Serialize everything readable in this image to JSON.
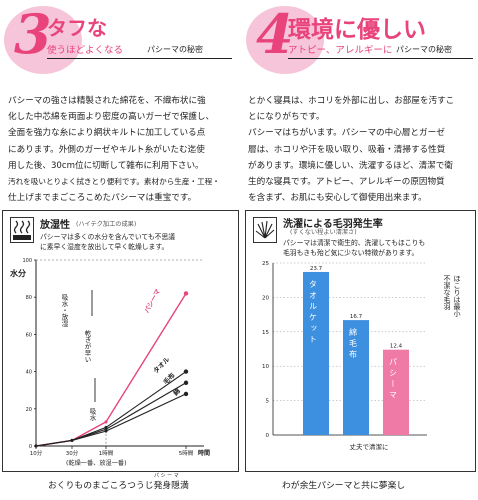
{
  "left_header": {
    "number": "3",
    "title": "タフな",
    "subtitle": "使うほどよくなる",
    "reference": "パシーマの秘密"
  },
  "right_header": {
    "number": "4",
    "title": "環境に優しい",
    "subtitle": "アトピー、アレルギーに",
    "reference": "パシーマの秘密"
  },
  "left_paragraph": [
    "パシーマの強さは精製された綿花を、不織布状に強",
    "化した中芯綿を両面より密度の高いガーゼで保護し、",
    "全面を強力な糸により網状キルトに加工している点",
    "にあります。外側のガーゼやキルト糸がいたむ迄使",
    "用した後、30cm位に切断して雑布に利用下さい。",
    "汚れを吸いとりよく拭きとり便利です。素材から生産・工程・",
    "仕上げまでまごころこめたパシーマは重宝です。"
  ],
  "right_paragraph": [
    "とかく寝具は、ホコリを外部に出し、お部屋を汚すこ",
    "とになりがちです。",
    "パシーマはちがいます。パシーマの中心層とガーゼ",
    "層は、ホコリや汗を吸い取り、吸着・清掃する性質",
    "があります。環境に優しい、洗濯するほど、清潔で衛",
    "生的な寝具です。アトピー、アレルギーの原因物質",
    "を含まず、お肌にも安心して御使用出来ます。"
  ],
  "left_panel": {
    "title": "放湿性",
    "note": "(ハイテク加工の成果)",
    "desc": [
      "パシーマは多くの水分を含んでいても不思議",
      "に素早く湿度を放出して早く乾燥します。"
    ],
    "caption": "おくりものまごころつうじ発身隠満",
    "ruby": "パ シ ー マ",
    "icon": "steam-bed-icon"
  },
  "right_panel": {
    "title": "洗濯による毛羽発生率",
    "note": "(すくない程よい清潔さ)",
    "desc": [
      "パシーマは清潔で衛生的、洗濯してもほこりも",
      "毛羽もきも殆ど気に少ない特徴があります。"
    ],
    "caption": "わが余生パシーマと共に夢楽し",
    "icon": "fuzz-icon"
  },
  "chart_data": [
    {
      "type": "line",
      "ylabel": "水分",
      "x": [
        "10分",
        "30分",
        "1時間",
        "5時間"
      ],
      "xaxis_unit": "時間",
      "x_footnote": "(乾燥一番、放湿一番)",
      "y_ticks": [
        "100",
        "80",
        "60",
        "40",
        "20",
        "0"
      ],
      "annotations": [
        "吸水・放湿",
        "吸水",
        "乾きが早い"
      ],
      "series": [
        {
          "name": "パシーマ",
          "color": "#e8447b",
          "values": [
            0,
            3,
            13,
            82
          ]
        },
        {
          "name": "タオル",
          "color": "#222222",
          "values": [
            0,
            3,
            10,
            40
          ]
        },
        {
          "name": "毛布",
          "color": "#222222",
          "values": [
            0,
            3,
            9,
            34
          ]
        },
        {
          "name": "綿",
          "color": "#222222",
          "values": [
            0,
            3,
            8,
            28
          ]
        }
      ],
      "ylim": [
        0,
        100
      ]
    },
    {
      "type": "bar",
      "categories": [
        "タオルケット",
        "綿毛布",
        "パシーマ"
      ],
      "values": [
        23.7,
        16.7,
        12.4
      ],
      "colors": [
        "#3d8fe0",
        "#3d8fe0",
        "#f07aa6"
      ],
      "y_ticks": [
        "25",
        "20",
        "15",
        "10",
        "5",
        "0"
      ],
      "ylim": [
        0,
        25
      ],
      "xlabel": "丈夫で清潔に",
      "side_note": [
        "不潔な毛羽",
        "ほこりは最小"
      ]
    }
  ]
}
